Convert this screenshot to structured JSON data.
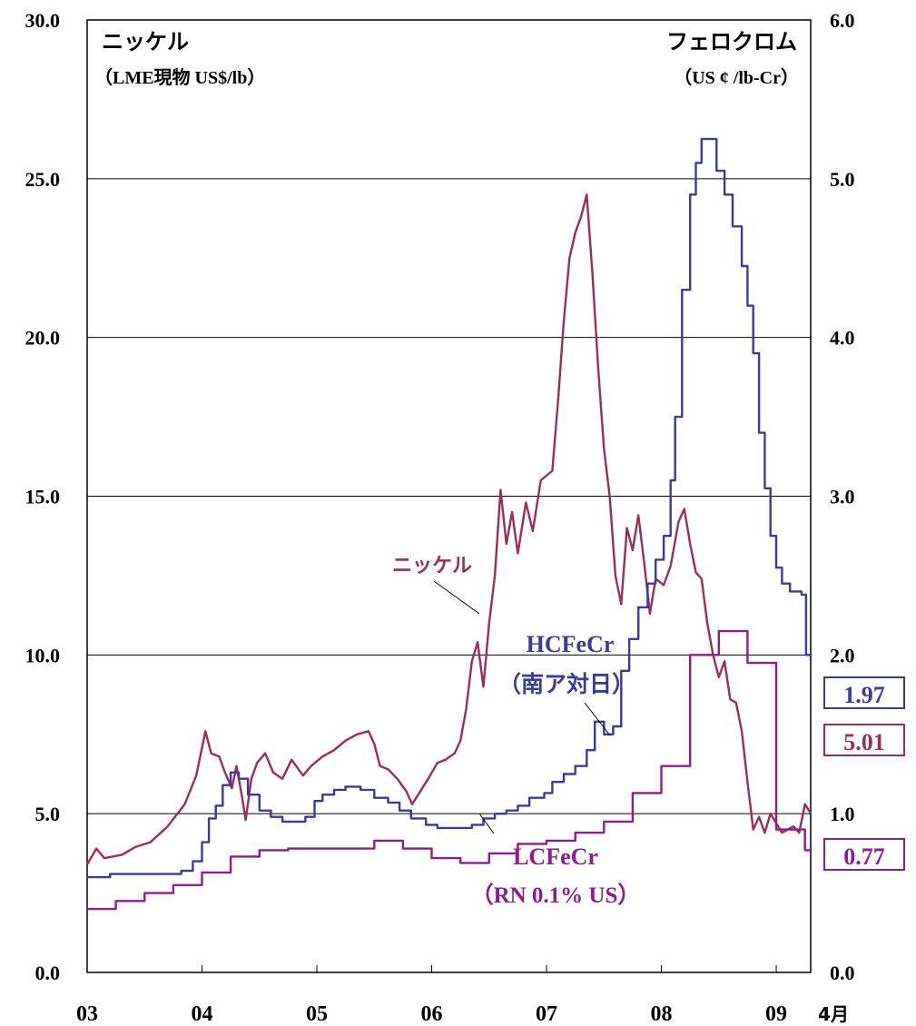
{
  "chart_data": {
    "type": "line",
    "left_axis": {
      "title": "ニッケル",
      "subtitle": "（LME現物 US$/lb）",
      "ylim": [
        0,
        30
      ],
      "ticks": [
        "0.0",
        "5.0",
        "10.0",
        "15.0",
        "20.0",
        "25.0",
        "30.0"
      ]
    },
    "right_axis": {
      "title": "フェロクロム",
      "subtitle": "（US ¢ /lb-Cr）",
      "ylim": [
        0,
        6
      ],
      "ticks": [
        "0.0",
        "1.0",
        "2.0",
        "3.0",
        "4.0",
        "5.0",
        "6.0"
      ]
    },
    "x_axis": {
      "ticks": [
        "03",
        "04",
        "05",
        "06",
        "07",
        "08",
        "09"
      ],
      "end_label": "4月",
      "xlim": [
        2003.0,
        2009.3
      ]
    },
    "grid": "horizontal",
    "series": [
      {
        "name": "ニッケル",
        "axis": "left",
        "color": "#9b2d5a",
        "end_value": "5.01",
        "points": [
          [
            2003.0,
            3.4
          ],
          [
            2003.08,
            3.9
          ],
          [
            2003.15,
            3.6
          ],
          [
            2003.3,
            3.7
          ],
          [
            2003.42,
            3.95
          ],
          [
            2003.55,
            4.1
          ],
          [
            2003.7,
            4.6
          ],
          [
            2003.85,
            5.3
          ],
          [
            2003.95,
            6.2
          ],
          [
            2004.03,
            7.6
          ],
          [
            2004.08,
            6.9
          ],
          [
            2004.15,
            6.8
          ],
          [
            2004.2,
            6.3
          ],
          [
            2004.26,
            5.8
          ],
          [
            2004.3,
            6.5
          ],
          [
            2004.35,
            5.5
          ],
          [
            2004.38,
            4.8
          ],
          [
            2004.43,
            6.1
          ],
          [
            2004.48,
            6.6
          ],
          [
            2004.55,
            6.9
          ],
          [
            2004.62,
            6.3
          ],
          [
            2004.7,
            6.1
          ],
          [
            2004.78,
            6.7
          ],
          [
            2004.88,
            6.2
          ],
          [
            2004.95,
            6.5
          ],
          [
            2005.05,
            6.8
          ],
          [
            2005.15,
            7.0
          ],
          [
            2005.25,
            7.3
          ],
          [
            2005.35,
            7.5
          ],
          [
            2005.45,
            7.6
          ],
          [
            2005.5,
            7.2
          ],
          [
            2005.55,
            6.5
          ],
          [
            2005.62,
            6.4
          ],
          [
            2005.7,
            6.1
          ],
          [
            2005.78,
            5.7
          ],
          [
            2005.83,
            5.3
          ],
          [
            2005.9,
            5.7
          ],
          [
            2005.97,
            6.1
          ],
          [
            2006.05,
            6.6
          ],
          [
            2006.12,
            6.7
          ],
          [
            2006.2,
            6.9
          ],
          [
            2006.25,
            7.3
          ],
          [
            2006.3,
            8.3
          ],
          [
            2006.35,
            9.8
          ],
          [
            2006.4,
            10.4
          ],
          [
            2006.45,
            9.0
          ],
          [
            2006.5,
            11.0
          ],
          [
            2006.55,
            12.5
          ],
          [
            2006.6,
            15.2
          ],
          [
            2006.65,
            13.5
          ],
          [
            2006.7,
            14.5
          ],
          [
            2006.75,
            13.2
          ],
          [
            2006.82,
            14.8
          ],
          [
            2006.88,
            13.9
          ],
          [
            2006.95,
            15.5
          ],
          [
            2007.05,
            15.8
          ],
          [
            2007.1,
            18.0
          ],
          [
            2007.15,
            20.5
          ],
          [
            2007.2,
            22.5
          ],
          [
            2007.25,
            23.3
          ],
          [
            2007.3,
            23.8
          ],
          [
            2007.35,
            24.5
          ],
          [
            2007.4,
            22.0
          ],
          [
            2007.45,
            19.0
          ],
          [
            2007.5,
            16.5
          ],
          [
            2007.55,
            15.0
          ],
          [
            2007.6,
            12.5
          ],
          [
            2007.65,
            11.6
          ],
          [
            2007.7,
            14.0
          ],
          [
            2007.75,
            13.3
          ],
          [
            2007.8,
            14.4
          ],
          [
            2007.85,
            12.9
          ],
          [
            2007.9,
            11.3
          ],
          [
            2007.95,
            12.4
          ],
          [
            2008.02,
            12.2
          ],
          [
            2008.08,
            12.8
          ],
          [
            2008.15,
            14.2
          ],
          [
            2008.2,
            14.6
          ],
          [
            2008.25,
            13.5
          ],
          [
            2008.3,
            12.6
          ],
          [
            2008.35,
            12.4
          ],
          [
            2008.4,
            11.0
          ],
          [
            2008.45,
            10.0
          ],
          [
            2008.5,
            9.3
          ],
          [
            2008.55,
            9.8
          ],
          [
            2008.6,
            8.6
          ],
          [
            2008.65,
            8.5
          ],
          [
            2008.7,
            7.6
          ],
          [
            2008.75,
            6.0
          ],
          [
            2008.8,
            4.5
          ],
          [
            2008.85,
            4.9
          ],
          [
            2008.9,
            4.4
          ],
          [
            2008.95,
            5.0
          ],
          [
            2009.05,
            4.4
          ],
          [
            2009.15,
            4.6
          ],
          [
            2009.2,
            4.4
          ],
          [
            2009.25,
            5.3
          ],
          [
            2009.3,
            5.01
          ]
        ]
      },
      {
        "name": "HCFeCr（南ア対日）",
        "axis": "right",
        "color": "#3a3a9a",
        "end_value": "1.97",
        "points": [
          [
            2003.0,
            0.6
          ],
          [
            2003.2,
            0.62
          ],
          [
            2003.4,
            0.62
          ],
          [
            2003.6,
            0.62
          ],
          [
            2003.82,
            0.64
          ],
          [
            2003.92,
            0.7
          ],
          [
            2004.0,
            0.82
          ],
          [
            2004.06,
            0.97
          ],
          [
            2004.12,
            1.05
          ],
          [
            2004.18,
            1.18
          ],
          [
            2004.25,
            1.26
          ],
          [
            2004.32,
            1.22
          ],
          [
            2004.4,
            1.12
          ],
          [
            2004.5,
            1.02
          ],
          [
            2004.6,
            0.98
          ],
          [
            2004.7,
            0.95
          ],
          [
            2004.8,
            0.95
          ],
          [
            2004.9,
            0.98
          ],
          [
            2004.98,
            1.08
          ],
          [
            2005.05,
            1.12
          ],
          [
            2005.15,
            1.15
          ],
          [
            2005.25,
            1.17
          ],
          [
            2005.38,
            1.15
          ],
          [
            2005.5,
            1.1
          ],
          [
            2005.62,
            1.07
          ],
          [
            2005.72,
            1.02
          ],
          [
            2005.82,
            0.97
          ],
          [
            2005.95,
            0.93
          ],
          [
            2006.05,
            0.91
          ],
          [
            2006.2,
            0.91
          ],
          [
            2006.35,
            0.93
          ],
          [
            2006.45,
            0.97
          ],
          [
            2006.55,
            1.0
          ],
          [
            2006.65,
            1.02
          ],
          [
            2006.75,
            1.05
          ],
          [
            2006.85,
            1.1
          ],
          [
            2006.98,
            1.13
          ],
          [
            2007.05,
            1.2
          ],
          [
            2007.15,
            1.25
          ],
          [
            2007.25,
            1.3
          ],
          [
            2007.35,
            1.4
          ],
          [
            2007.42,
            1.58
          ],
          [
            2007.5,
            1.5
          ],
          [
            2007.58,
            1.55
          ],
          [
            2007.65,
            1.9
          ],
          [
            2007.72,
            2.1
          ],
          [
            2007.8,
            2.3
          ],
          [
            2007.88,
            2.45
          ],
          [
            2007.95,
            2.6
          ],
          [
            2008.02,
            2.75
          ],
          [
            2008.08,
            3.1
          ],
          [
            2008.12,
            3.5
          ],
          [
            2008.18,
            4.3
          ],
          [
            2008.25,
            4.9
          ],
          [
            2008.3,
            5.1
          ],
          [
            2008.35,
            5.25
          ],
          [
            2008.42,
            5.25
          ],
          [
            2008.48,
            5.05
          ],
          [
            2008.55,
            4.9
          ],
          [
            2008.62,
            4.7
          ],
          [
            2008.7,
            4.45
          ],
          [
            2008.75,
            4.2
          ],
          [
            2008.8,
            3.9
          ],
          [
            2008.85,
            3.4
          ],
          [
            2008.9,
            3.05
          ],
          [
            2008.95,
            2.75
          ],
          [
            2009.0,
            2.55
          ],
          [
            2009.05,
            2.45
          ],
          [
            2009.12,
            2.4
          ],
          [
            2009.22,
            2.38
          ],
          [
            2009.26,
            2.0
          ],
          [
            2009.3,
            1.97
          ]
        ]
      },
      {
        "name": "LCFeCr（RN 0.1% US）",
        "axis": "right",
        "color": "#8a1e8e",
        "end_value": "0.77",
        "points": [
          [
            2003.0,
            0.4
          ],
          [
            2003.25,
            0.45
          ],
          [
            2003.5,
            0.5
          ],
          [
            2003.75,
            0.55
          ],
          [
            2004.0,
            0.63
          ],
          [
            2004.25,
            0.73
          ],
          [
            2004.5,
            0.77
          ],
          [
            2004.75,
            0.78
          ],
          [
            2005.0,
            0.78
          ],
          [
            2005.25,
            0.78
          ],
          [
            2005.5,
            0.83
          ],
          [
            2005.75,
            0.78
          ],
          [
            2006.0,
            0.72
          ],
          [
            2006.25,
            0.69
          ],
          [
            2006.5,
            0.75
          ],
          [
            2006.75,
            0.81
          ],
          [
            2007.0,
            0.83
          ],
          [
            2007.25,
            0.88
          ],
          [
            2007.5,
            0.95
          ],
          [
            2007.75,
            1.13
          ],
          [
            2008.0,
            1.3
          ],
          [
            2008.25,
            2.0
          ],
          [
            2008.5,
            2.15
          ],
          [
            2008.75,
            1.95
          ],
          [
            2009.0,
            0.9
          ],
          [
            2009.25,
            0.77
          ],
          [
            2009.3,
            0.77
          ]
        ]
      }
    ],
    "annotations": [
      {
        "text": "ニッケル",
        "series": "ニッケル"
      },
      {
        "text": "HCFeCr",
        "series": "HCFeCr（南ア対日）"
      },
      {
        "text": "（南ア対日）",
        "series": "HCFeCr（南ア対日）"
      },
      {
        "text": "LCFeCr",
        "series": "LCFeCr（RN 0.1% US）"
      },
      {
        "text": "（RN 0.1% US）",
        "series": "LCFeCr（RN 0.1% US）"
      }
    ]
  }
}
